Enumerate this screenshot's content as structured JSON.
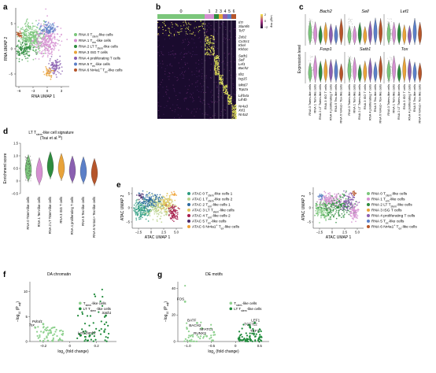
{
  "panels": {
    "a": {
      "letter": "a",
      "xlabel": "RNA UMAP 1",
      "ylabel": "RNA UMAP 2",
      "xticks": [
        "−6",
        "−3",
        "0",
        "3"
      ],
      "yticks": [
        "5",
        "0",
        "−5"
      ],
      "legend": [
        "RNA 0 T<sub>stem</sub>-like cells",
        "RNA 1 T<sub>em</sub>-like cells",
        "RNA 2 LT T<sub>stem</sub>-like cells",
        "RNA 3 ISG T cells",
        "RNA 4 proliferating T cells",
        "RNA 5 T<sub>ex</sub>-like cells",
        "RNA 6 Nr4a1<sup>+</sup> T<sub>ex</sub>-like cells"
      ],
      "legend_plain": [
        "RNA 0 Tstem-like cells",
        "RNA 1 Tem-like cells",
        "RNA 2 LT Tstem-like cells",
        "RNA 3 ISG T cells",
        "RNA 4 proliferating T cells",
        "RNA 5 Tex-like cells",
        "RNA 6 Nr4a1+ Tex-like cells"
      ]
    },
    "b": {
      "letter": "b",
      "cluster_labels": [
        "0",
        "1",
        "2",
        "3",
        "4",
        "5",
        "6"
      ],
      "colorbar_title": "Log2 exp",
      "colorbar_ticks": [
        "2",
        "0",
        "−2"
      ],
      "genes": [
        "Il7r",
        "Slamf6",
        "Tcf7",
        "Zeb2",
        "Cx3cr1",
        "Klrel",
        "Klrb1c",
        "Satb1",
        "Sell",
        "Lef1",
        "Bach2",
        "Ifit1",
        "Isg15",
        "Mki67",
        "Top2a",
        "Lilrb4a",
        "Lilr4b",
        "Nr4a3",
        "Xcl1",
        "Nr4a2"
      ]
    },
    "c": {
      "letter": "c",
      "ylabel": "Expression level",
      "genes": [
        "Bach2",
        "Sell",
        "Lef1",
        "Foxp1",
        "Satb1",
        "Tox"
      ],
      "xcats": [
        "RNA 0 Tstem-like cells",
        "RNA 1 Tem-like cells",
        "RNA 2 LT Tstem-like cells",
        "RNA 3 ISG T cells",
        "RNA 4 proliferating T cells",
        "RNA 5 Tex-like cells",
        "RNA 6 Nr4a1+ Tex-like cells"
      ]
    },
    "d": {
      "letter": "d",
      "title": "LT T<sub>stem</sub>-like cell signature",
      "subtitle": "(Tsui et al.<sup>38</sup>)",
      "ylabel": "Enrichment score",
      "yticks": [
        "1.5",
        "1.0",
        "0.5",
        "0",
        "−0.5"
      ],
      "xcats": [
        "RNA 0 Tstem-like cells",
        "RNA 1 Tem-like cells",
        "RNA 2 LT Tstem-like cells",
        "RNA 3 ISG T cells",
        "RNA 4 proliferating T cells",
        "RNA 5 Tex-like cells",
        "RNA 6 Nr4a1+ Tex-like cells"
      ]
    },
    "e": {
      "letter": "e",
      "xlabel": "ATAC UMAP 1",
      "ylabel": "ATAC UMAP 2",
      "xticks": [
        "−2.5",
        "0",
        "2.5",
        "5.0"
      ],
      "yticks": [
        "5",
        "0",
        "−5"
      ],
      "legend_atac": [
        "ATAC 0 T<sub>stem</sub>-like cells 1",
        "ATAC 1 T<sub>stem</sub>-like cells 2",
        "ATAC 2 T<sub>em</sub>-like cells 1",
        "ATAC 3 LT T<sub>stem</sub>-like cells",
        "ATAC 4 T<sub>em</sub>-like cells 2",
        "ATAC 5 T<sub>ex</sub>-like cells",
        "ATAC 6 Nr4a1<sup>+</sup> T<sub>ex</sub>-like cells"
      ],
      "legend_rna": [
        "RNA 0 T<sub>stem</sub>-like cells",
        "RNA 1 T<sub>em</sub>-like cells",
        "RNA 2 LT T<sub>stem</sub>-like cells",
        "RNA 3 ISG T cells",
        "RNA 4 proliferating T cells",
        "RNA 5 T<sub>ex</sub>-like cells",
        "RNA 6 Nr4a1<sup>+</sup> T<sub>ex</sub>-like cells"
      ]
    },
    "f": {
      "letter": "f",
      "title": "DA chromatin",
      "xlabel": "log<tspan baseline-shift='sub' font-size='3.5'>2</tspan> (fold change)",
      "ylabel": "−log10 (Padj)",
      "xticks": [
        "−0.2",
        "0",
        "0.2"
      ],
      "yticks": [
        "10",
        "5",
        "0"
      ],
      "legend": [
        "T<sub>stem</sub>-like cells",
        "LT T<sub>stem</sub>-like cells"
      ],
      "genes": [
        "Pdcd1",
        "Tox",
        "Satb1",
        "Lef1",
        "Bach2"
      ]
    },
    "g": {
      "letter": "g",
      "title": "DE motifs",
      "xlabel": "log2 (fold change)",
      "ylabel": "−log10 (Padj)",
      "xticks": [
        "−1.0",
        "−0.5",
        "0",
        "0.5"
      ],
      "yticks": [
        "40",
        "20",
        "0"
      ],
      "legend": [
        "T<sub>stem</sub>-like cells",
        "LT T<sub>stem</sub>-like cells"
      ],
      "motifs": [
        "FOS",
        "BATF",
        "BACH2",
        "NFATC1",
        "RUNX3",
        "LEF1",
        "TCF7L2",
        "TCF7"
      ]
    }
  },
  "colors": {
    "c0": "#7bc67b",
    "c1": "#d58fd1",
    "c2": "#2e8b3e",
    "c3": "#e8a33a",
    "c4": "#8a5fb0",
    "c5": "#5b7fc7",
    "c6": "#b5552a",
    "a0": "#2c9b7f",
    "a1": "#b7d08a",
    "a2": "#2d6aa0",
    "a3": "#e0c45a",
    "a4": "#a61c4c",
    "a5": "#4b2b6b",
    "a6": "#f0a33a",
    "light": "#8fd18f",
    "dark": "#1e8a3a"
  },
  "chart_data": [
    {
      "type": "violin",
      "panel": "d",
      "categories": [
        "RNA 0",
        "RNA 1",
        "RNA 2",
        "RNA 3",
        "RNA 4",
        "RNA 5",
        "RNA 6"
      ],
      "medians": [
        0.5,
        0.38,
        0.62,
        0.55,
        0.45,
        0.42,
        0.35
      ],
      "ylim": [
        -0.5,
        1.5
      ]
    },
    {
      "type": "scatter",
      "panel": "f",
      "title": "DA chromatin",
      "xlim": [
        -0.3,
        0.35
      ],
      "ylim": [
        0,
        12
      ],
      "labeled_points": [
        {
          "name": "Pdcd1",
          "x": -0.2,
          "y": 3.5
        },
        {
          "name": "Tox",
          "x": -0.26,
          "y": 2.8
        },
        {
          "name": "Satb1",
          "x": 0.27,
          "y": 5.2
        },
        {
          "name": "Lef1",
          "x": 0.08,
          "y": 1.2
        },
        {
          "name": "Bach2",
          "x": 0.15,
          "y": 1.2
        }
      ]
    },
    {
      "type": "scatter",
      "panel": "g",
      "title": "DE motifs",
      "xlim": [
        -1.2,
        0.7
      ],
      "ylim": [
        0,
        45
      ],
      "labeled_points": [
        {
          "name": "FOS",
          "x": -1.05,
          "y": 30
        },
        {
          "name": "BATF",
          "x": -0.8,
          "y": 14
        },
        {
          "name": "BACH2",
          "x": -0.7,
          "y": 10
        },
        {
          "name": "NFATC1",
          "x": -0.45,
          "y": 7
        },
        {
          "name": "RUNX3",
          "x": -0.6,
          "y": 4
        },
        {
          "name": "LEF1",
          "x": 0.4,
          "y": 14
        },
        {
          "name": "TCF7L2",
          "x": 0.3,
          "y": 11
        },
        {
          "name": "TCF7",
          "x": 0.38,
          "y": 6
        }
      ]
    }
  ]
}
